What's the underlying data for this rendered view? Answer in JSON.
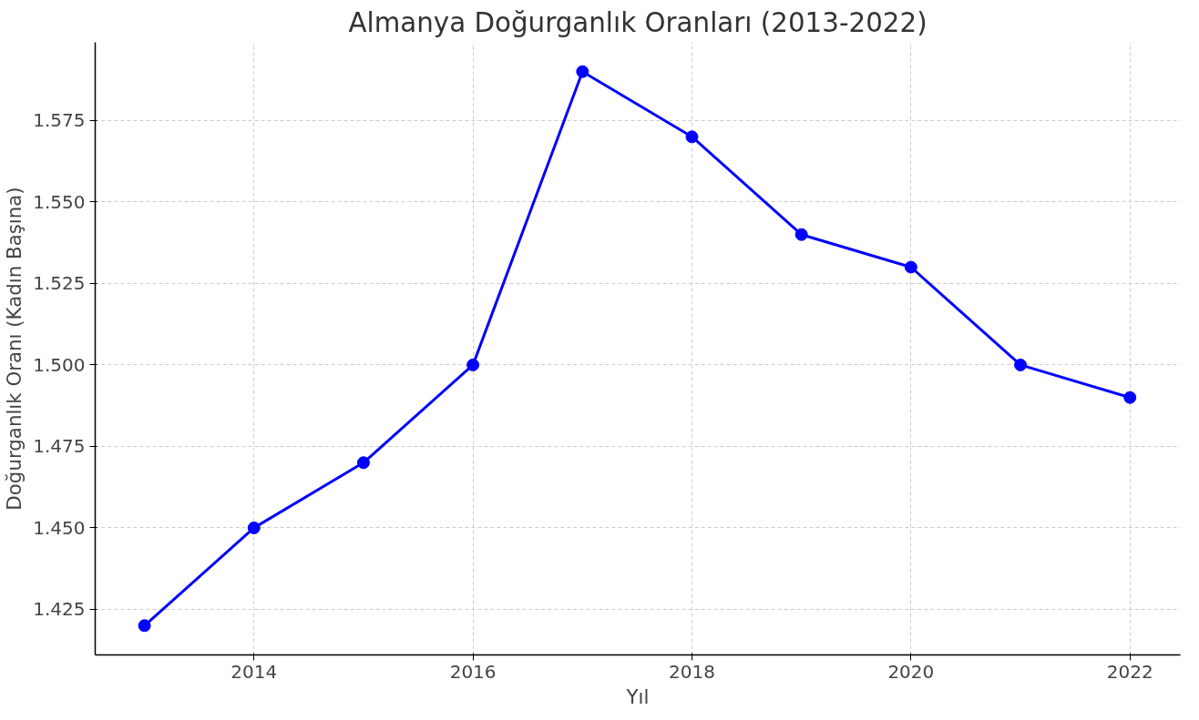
{
  "chart_data": {
    "type": "line",
    "title": "Almanya Doğurganlık Oranları (2013-2022)",
    "xlabel": "Yıl",
    "ylabel": "Doğurganlık Oranı (Kadın Başına)",
    "x": [
      2013,
      2014,
      2015,
      2016,
      2017,
      2018,
      2019,
      2020,
      2021,
      2022
    ],
    "series": [
      {
        "color": "#0000ff",
        "values": [
          1.42,
          1.45,
          1.47,
          1.5,
          1.59,
          1.57,
          1.54,
          1.53,
          1.5,
          1.49
        ]
      }
    ],
    "xlim": [
      2012.55,
      2022.46
    ],
    "xticks": [
      2014,
      2016,
      2018,
      2020,
      2022
    ],
    "ylim": [
      1.411,
      1.599
    ],
    "yticks": [
      {
        "value": 1.425,
        "label": "1.425"
      },
      {
        "value": 1.45,
        "label": "1.450"
      },
      {
        "value": 1.475,
        "label": "1.475"
      },
      {
        "value": 1.5,
        "label": "1.500"
      },
      {
        "value": 1.525,
        "label": "1.525"
      },
      {
        "value": 1.55,
        "label": "1.550"
      },
      {
        "value": 1.575,
        "label": "1.575"
      }
    ],
    "grid": true,
    "marker": "circle",
    "line_style": "solid"
  }
}
